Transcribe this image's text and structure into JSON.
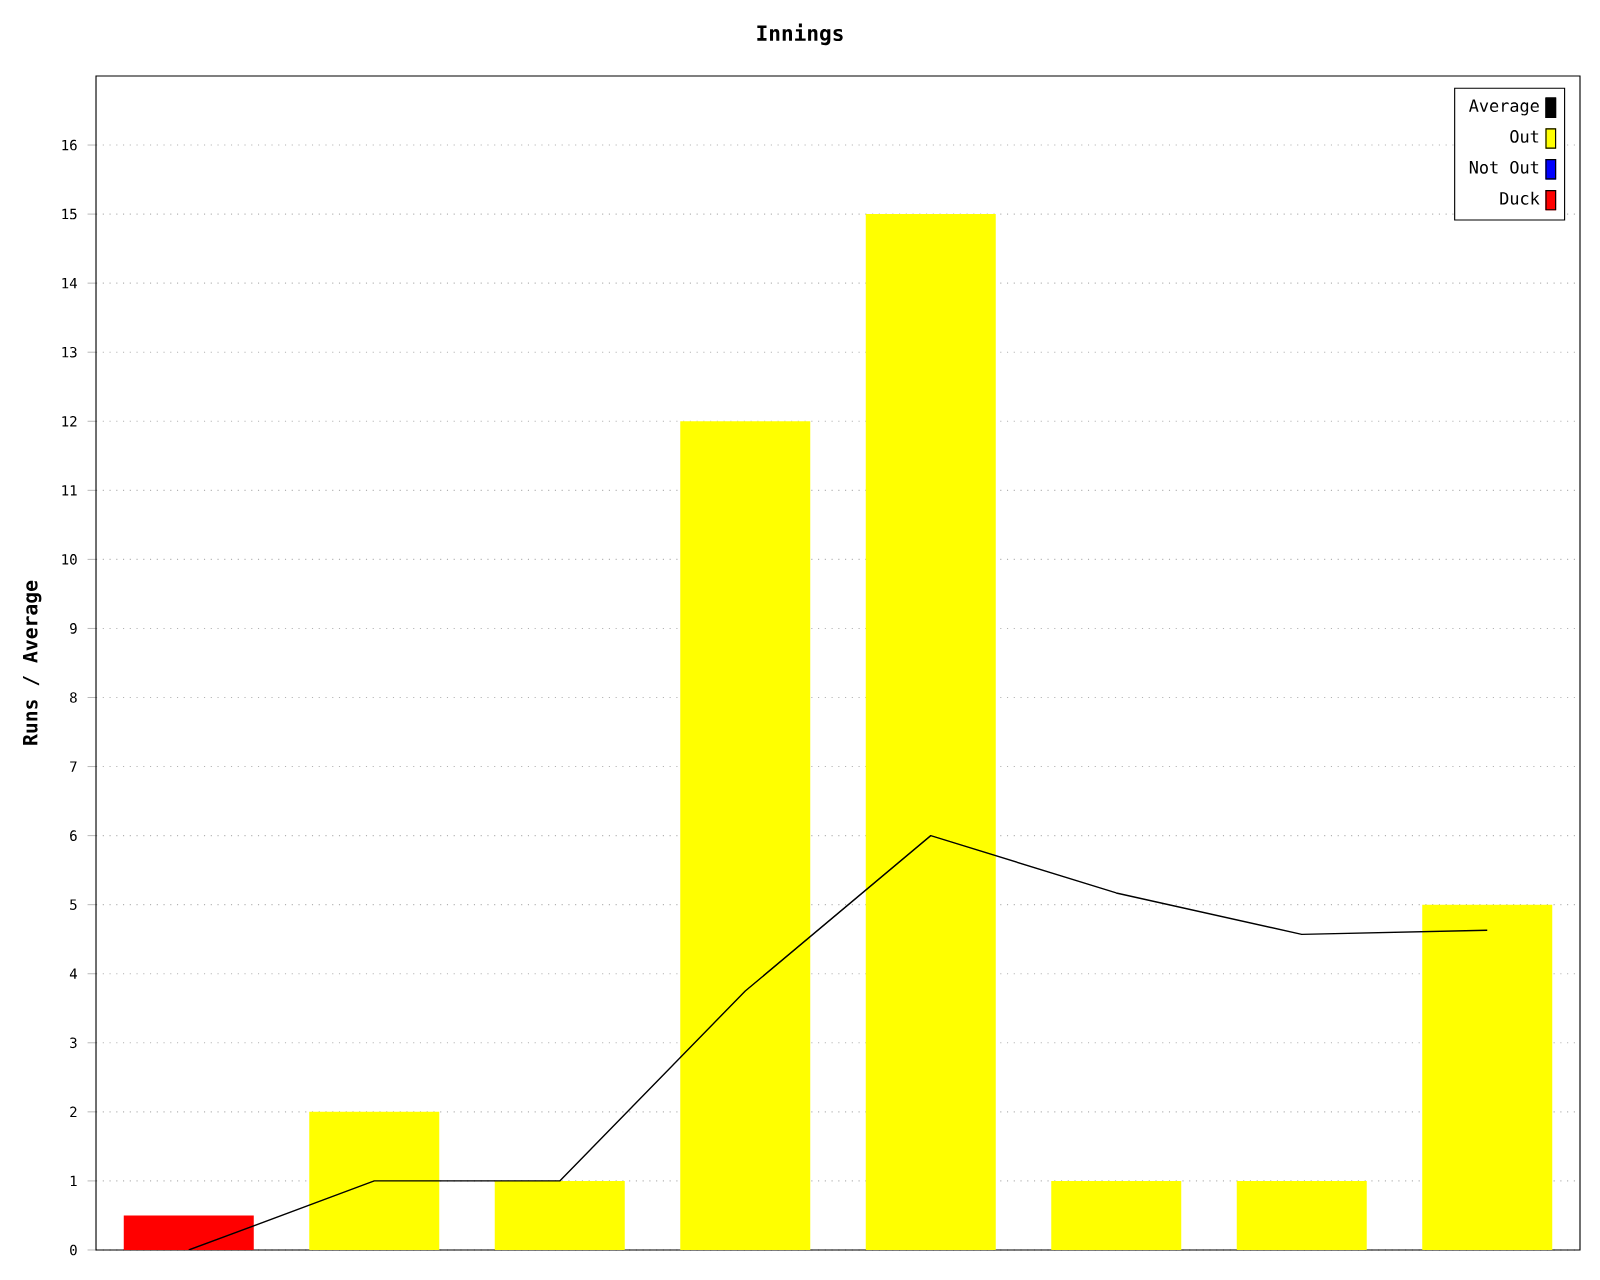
{
  "chart_data": {
    "type": "bar",
    "title": "Innings",
    "ylabel": "Runs / Average",
    "categories": [
      null,
      null,
      null,
      null,
      null,
      null,
      null,
      null
    ],
    "series": [
      {
        "name": "Average",
        "type": "line",
        "color": "#000000",
        "values": [
          0,
          1,
          1,
          3.75,
          6,
          5.17,
          4.57,
          4.63
        ]
      },
      {
        "name": "Out",
        "color": "#ffff00",
        "values": [
          null,
          2,
          1,
          12,
          15,
          1,
          1,
          5
        ]
      },
      {
        "name": "Not Out",
        "color": "#0000ff",
        "values": [
          null,
          null,
          null,
          null,
          null,
          null,
          null,
          null
        ]
      },
      {
        "name": "Duck",
        "color": "#ff0000",
        "values": [
          0.5,
          null,
          null,
          null,
          null,
          null,
          null,
          null
        ]
      }
    ],
    "ylim": [
      0,
      17
    ],
    "yticks": [
      0,
      1,
      2,
      3,
      4,
      5,
      6,
      7,
      8,
      9,
      10,
      11,
      12,
      13,
      14,
      15,
      16
    ],
    "grid": "y",
    "legend": "top right",
    "tick_labels": "y",
    "marker": "none"
  }
}
